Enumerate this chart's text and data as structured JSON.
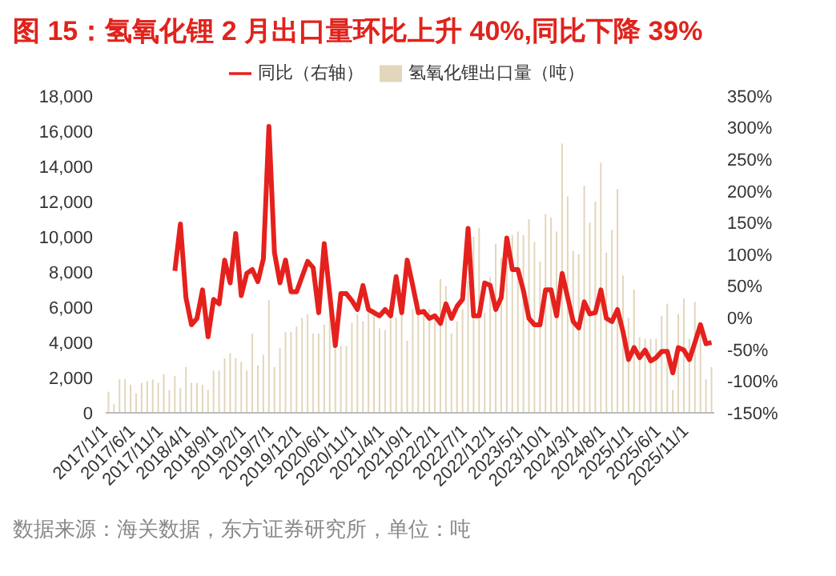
{
  "chart_data": {
    "type": "bar",
    "title": "图 15：氢氧化锂 2 月出口量环比上升 40%,同比下降 39%",
    "annotations": [
      "数据来源：海关数据，东方证券研究所，单位：吨"
    ],
    "categories": [
      "2017/1/1",
      null,
      null,
      null,
      null,
      "2017/6/1",
      null,
      null,
      null,
      null,
      "2017/11/1",
      null,
      null,
      null,
      null,
      "2018/4/1",
      null,
      null,
      null,
      null,
      "2018/9/1",
      null,
      null,
      null,
      null,
      "2019/2/1",
      null,
      null,
      null,
      null,
      "2019/7/1",
      null,
      null,
      null,
      null,
      "2019/12/1",
      null,
      null,
      null,
      null,
      "2020/6/1",
      null,
      null,
      null,
      null,
      "2020/11/1",
      null,
      null,
      null,
      null,
      "2021/4/1",
      null,
      null,
      null,
      null,
      "2021/9/1",
      null,
      null,
      null,
      null,
      "2022/2/1",
      null,
      null,
      null,
      null,
      "2022/7/1",
      null,
      null,
      null,
      null,
      "2022/12/1",
      null,
      null,
      null,
      null,
      "2023/5/1",
      null,
      null,
      null,
      null,
      "2023/10/1",
      null,
      null,
      null,
      null,
      "2024/3/1",
      null,
      null,
      null,
      null,
      "2024/8/1",
      null,
      null,
      null,
      null,
      "2025/1/1",
      null,
      null,
      null,
      null,
      "2025/6/1",
      null,
      null,
      null,
      null,
      "2025/11/1",
      null,
      null,
      null,
      null
    ],
    "series": [
      {
        "name": "氢氧化锂出口量（吨）",
        "color": "#e2d6bb",
        "values": [
          1200,
          500,
          1900,
          1900,
          1600,
          1100,
          1700,
          1800,
          1900,
          1700,
          2200,
          1300,
          2100,
          1400,
          2600,
          1700,
          1700,
          1600,
          1300,
          2400,
          2400,
          3100,
          3400,
          3100,
          2900,
          2400,
          4500,
          2700,
          3300,
          6400,
          2600,
          3700,
          4600,
          4600,
          4900,
          5400,
          5600,
          4500,
          4500,
          5000,
          5900,
          4300,
          3800,
          3800,
          5100,
          5600,
          5200,
          6000,
          5900,
          4800,
          4700,
          5500,
          5400,
          5700,
          4100,
          5900,
          6400,
          5700,
          5900,
          5500,
          7600,
          7200,
          4500,
          5200,
          5900,
          7500,
          10000,
          10500,
          5700,
          7700,
          9600,
          8800,
          8600,
          10100,
          10300,
          10100,
          11000,
          9700,
          8600,
          11300,
          11100,
          10300,
          15300,
          12300,
          9200,
          9000,
          12900,
          10800,
          12000,
          14200,
          9100,
          10400,
          12700,
          7800,
          5400,
          7000,
          4300,
          4200,
          4200,
          4200,
          5500,
          6200,
          1300,
          5600,
          6500,
          4200,
          6300,
          5000,
          1900,
          2600
        ]
      },
      {
        "name": "同比（右轴）",
        "type": "line",
        "axis": "y2",
        "color": "#e5211d",
        "values": [
          null,
          null,
          null,
          null,
          null,
          null,
          null,
          null,
          null,
          null,
          null,
          null,
          74,
          148,
          32,
          -11,
          -1,
          44,
          -30,
          29,
          22,
          91,
          55,
          133,
          35,
          70,
          76,
          57,
          93,
          302,
          103,
          55,
          91,
          41,
          41,
          65,
          89,
          79,
          8,
          117,
          37,
          -44,
          38,
          38,
          27,
          13,
          51,
          13,
          8,
          3,
          13,
          3,
          65,
          8,
          91,
          51,
          8,
          10,
          -1,
          3,
          -9,
          22,
          -1,
          18,
          29,
          141,
          3,
          3,
          55,
          51,
          13,
          32,
          126,
          76,
          76,
          43,
          -1,
          -11,
          -11,
          44,
          44,
          3,
          70,
          32,
          -6,
          -16,
          25,
          6,
          8,
          44,
          -1,
          -6,
          13,
          -22,
          -66,
          -47,
          -63,
          -51,
          -68,
          -63,
          -53,
          -53,
          -87,
          -47,
          -51,
          -66,
          -39,
          -11,
          -41,
          -39
        ]
      }
    ],
    "ylim": [
      0,
      18000
    ],
    "yticks": [
      0,
      {
        "value": 2000,
        "label": "2,000"
      },
      {
        "value": 4000,
        "label": "4,000"
      },
      {
        "value": 6000,
        "label": "6,000"
      },
      {
        "value": 8000,
        "label": "8,000"
      },
      {
        "value": 10000,
        "label": "10,000"
      },
      {
        "value": 12000,
        "label": "12,000"
      },
      {
        "value": 14000,
        "label": "14,000"
      },
      {
        "value": 16000,
        "label": "16,000"
      },
      {
        "value": 18000,
        "label": "18,000"
      }
    ],
    "y2lim": [
      -150,
      350
    ],
    "y2ticks": [
      {
        "value": -150,
        "label": "-150%"
      },
      {
        "value": -100,
        "label": "-100%"
      },
      {
        "value": -50,
        "label": "-50%"
      },
      {
        "value": 0,
        "label": "0%"
      },
      {
        "value": 50,
        "label": "50%"
      },
      {
        "value": 100,
        "label": "100%"
      },
      {
        "value": 150,
        "label": "150%"
      },
      {
        "value": 200,
        "label": "200%"
      },
      {
        "value": 250,
        "label": "250%"
      },
      {
        "value": 300,
        "label": "300%"
      },
      {
        "value": 350,
        "label": "350%"
      }
    ],
    "legend": "top",
    "grid": false,
    "marker": "none"
  }
}
